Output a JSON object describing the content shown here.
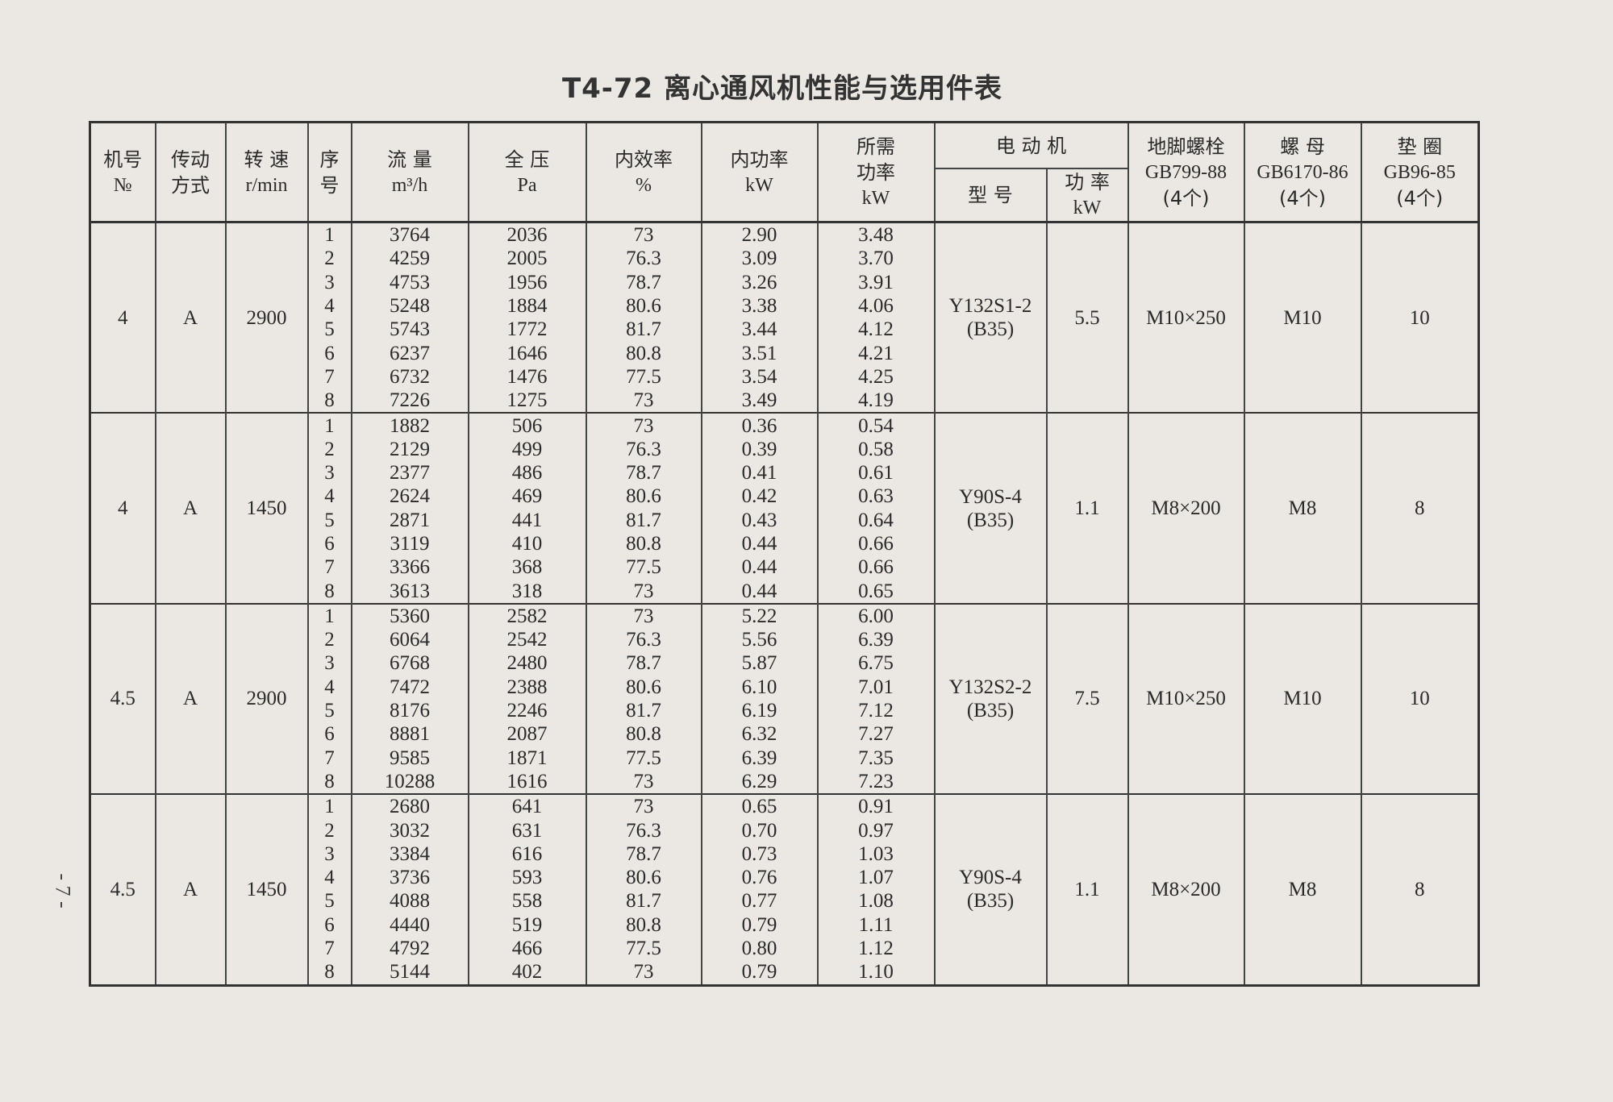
{
  "title": "T4-72 离心通风机性能与选用件表",
  "page_number": "- 7 -",
  "headers": {
    "machine_no": [
      "机号",
      "№"
    ],
    "drive": [
      "传动",
      "方式"
    ],
    "speed": [
      "转 速",
      "r/min"
    ],
    "seq": [
      "序",
      "号"
    ],
    "flow": [
      "流 量",
      "m³/h"
    ],
    "pressure": [
      "全 压",
      "Pa"
    ],
    "efficiency": [
      "内效率",
      "%"
    ],
    "internal_power": [
      "内功率",
      "kW"
    ],
    "required_power": [
      "所需",
      "功率",
      "kW"
    ],
    "motor": "电 动 机",
    "motor_model": "型 号",
    "motor_power": [
      "功 率",
      "kW"
    ],
    "anchor_bolt": [
      "地脚螺栓",
      "GB799-88",
      "(4个)"
    ],
    "nut": [
      "螺 母",
      "GB6170-86",
      "(4个)"
    ],
    "washer": [
      "垫 圈",
      "GB96-85",
      "(4个)"
    ]
  },
  "groups": [
    {
      "machine_no": "4",
      "drive": "A",
      "speed": "2900",
      "motor_model": [
        "Y132S1-2",
        "(B35)"
      ],
      "motor_power": "5.5",
      "anchor_bolt": "M10×250",
      "nut": "M10",
      "washer": "10",
      "rows": [
        [
          "1",
          "3764",
          "2036",
          "73",
          "2.90",
          "3.48"
        ],
        [
          "2",
          "4259",
          "2005",
          "76.3",
          "3.09",
          "3.70"
        ],
        [
          "3",
          "4753",
          "1956",
          "78.7",
          "3.26",
          "3.91"
        ],
        [
          "4",
          "5248",
          "1884",
          "80.6",
          "3.38",
          "4.06"
        ],
        [
          "5",
          "5743",
          "1772",
          "81.7",
          "3.44",
          "4.12"
        ],
        [
          "6",
          "6237",
          "1646",
          "80.8",
          "3.51",
          "4.21"
        ],
        [
          "7",
          "6732",
          "1476",
          "77.5",
          "3.54",
          "4.25"
        ],
        [
          "8",
          "7226",
          "1275",
          "73",
          "3.49",
          "4.19"
        ]
      ]
    },
    {
      "machine_no": "4",
      "drive": "A",
      "speed": "1450",
      "motor_model": [
        "Y90S-4",
        "(B35)"
      ],
      "motor_power": "1.1",
      "anchor_bolt": "M8×200",
      "nut": "M8",
      "washer": "8",
      "rows": [
        [
          "1",
          "1882",
          "506",
          "73",
          "0.36",
          "0.54"
        ],
        [
          "2",
          "2129",
          "499",
          "76.3",
          "0.39",
          "0.58"
        ],
        [
          "3",
          "2377",
          "486",
          "78.7",
          "0.41",
          "0.61"
        ],
        [
          "4",
          "2624",
          "469",
          "80.6",
          "0.42",
          "0.63"
        ],
        [
          "5",
          "2871",
          "441",
          "81.7",
          "0.43",
          "0.64"
        ],
        [
          "6",
          "3119",
          "410",
          "80.8",
          "0.44",
          "0.66"
        ],
        [
          "7",
          "3366",
          "368",
          "77.5",
          "0.44",
          "0.66"
        ],
        [
          "8",
          "3613",
          "318",
          "73",
          "0.44",
          "0.65"
        ]
      ]
    },
    {
      "machine_no": "4.5",
      "drive": "A",
      "speed": "2900",
      "motor_model": [
        "Y132S2-2",
        "(B35)"
      ],
      "motor_power": "7.5",
      "anchor_bolt": "M10×250",
      "nut": "M10",
      "washer": "10",
      "rows": [
        [
          "1",
          "5360",
          "2582",
          "73",
          "5.22",
          "6.00"
        ],
        [
          "2",
          "6064",
          "2542",
          "76.3",
          "5.56",
          "6.39"
        ],
        [
          "3",
          "6768",
          "2480",
          "78.7",
          "5.87",
          "6.75"
        ],
        [
          "4",
          "7472",
          "2388",
          "80.6",
          "6.10",
          "7.01"
        ],
        [
          "5",
          "8176",
          "2246",
          "81.7",
          "6.19",
          "7.12"
        ],
        [
          "6",
          "8881",
          "2087",
          "80.8",
          "6.32",
          "7.27"
        ],
        [
          "7",
          "9585",
          "1871",
          "77.5",
          "6.39",
          "7.35"
        ],
        [
          "8",
          "10288",
          "1616",
          "73",
          "6.29",
          "7.23"
        ]
      ]
    },
    {
      "machine_no": "4.5",
      "drive": "A",
      "speed": "1450",
      "motor_model": [
        "Y90S-4",
        "(B35)"
      ],
      "motor_power": "1.1",
      "anchor_bolt": "M8×200",
      "nut": "M8",
      "washer": "8",
      "rows": [
        [
          "1",
          "2680",
          "641",
          "73",
          "0.65",
          "0.91"
        ],
        [
          "2",
          "3032",
          "631",
          "76.3",
          "0.70",
          "0.97"
        ],
        [
          "3",
          "3384",
          "616",
          "78.7",
          "0.73",
          "1.03"
        ],
        [
          "4",
          "3736",
          "593",
          "80.6",
          "0.76",
          "1.07"
        ],
        [
          "5",
          "4088",
          "558",
          "81.7",
          "0.77",
          "1.08"
        ],
        [
          "6",
          "4440",
          "519",
          "80.8",
          "0.79",
          "1.11"
        ],
        [
          "7",
          "4792",
          "466",
          "77.5",
          "0.80",
          "1.12"
        ],
        [
          "8",
          "5144",
          "402",
          "73",
          "0.79",
          "1.10"
        ]
      ]
    }
  ]
}
